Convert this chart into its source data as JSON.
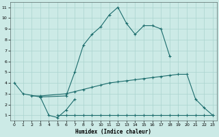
{
  "xlabel": "Humidex (Indice chaleur)",
  "bg_color": "#cceae6",
  "line_color": "#1a6b6b",
  "grid_color": "#aad4cf",
  "ylim": [
    0.5,
    11.5
  ],
  "xlim": [
    -0.5,
    23.5
  ],
  "yticks": [
    1,
    2,
    3,
    4,
    5,
    6,
    7,
    8,
    9,
    10,
    11
  ],
  "xticks": [
    0,
    1,
    2,
    3,
    4,
    5,
    6,
    7,
    8,
    9,
    10,
    11,
    12,
    13,
    14,
    15,
    16,
    17,
    18,
    19,
    20,
    21,
    22,
    23
  ],
  "line1_x": [
    0,
    1,
    3,
    4,
    5,
    6,
    7
  ],
  "line1_y": [
    4.0,
    3.0,
    2.7,
    1.0,
    0.8,
    1.5,
    2.5
  ],
  "line2_x": [
    3,
    6,
    7,
    8,
    9,
    10,
    11,
    12,
    13,
    14,
    15,
    16,
    17,
    18
  ],
  "line2_y": [
    2.7,
    2.8,
    5.0,
    7.5,
    8.5,
    9.2,
    10.3,
    11.0,
    9.5,
    8.5,
    9.3,
    9.3,
    9.0,
    6.5
  ],
  "line3_x": [
    2,
    3,
    6,
    7,
    8,
    9,
    10,
    11,
    12,
    13,
    14,
    15,
    16,
    17,
    18,
    19,
    20,
    21,
    22,
    23
  ],
  "line3_y": [
    2.8,
    2.8,
    3.0,
    3.2,
    3.4,
    3.6,
    3.8,
    4.0,
    4.1,
    4.2,
    4.3,
    4.4,
    4.5,
    4.6,
    4.7,
    4.8,
    4.8,
    2.5,
    1.7,
    1.0
  ],
  "line4_x": [
    5,
    6,
    7,
    8,
    9,
    10,
    11,
    12,
    13,
    14,
    15,
    16,
    17,
    18,
    19,
    20,
    21,
    22,
    23
  ],
  "line4_y": [
    1.0,
    1.0,
    1.0,
    1.0,
    1.0,
    1.0,
    1.0,
    1.0,
    1.0,
    1.0,
    1.0,
    1.0,
    1.0,
    1.0,
    1.0,
    1.0,
    1.0,
    1.0,
    1.0
  ]
}
